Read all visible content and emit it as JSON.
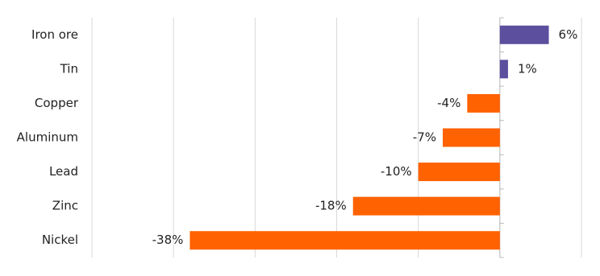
{
  "chart_data": {
    "type": "bar",
    "orientation": "horizontal",
    "categories": [
      "Iron ore",
      "Tin",
      "Copper",
      "Aluminum",
      "Lead",
      "Zinc",
      "Nickel"
    ],
    "values": [
      6,
      1,
      -4,
      -7,
      -10,
      -18,
      -38
    ],
    "value_labels": [
      "6%",
      "1%",
      "-4%",
      "-7%",
      "-10%",
      "-18%",
      "-38%"
    ],
    "colors": [
      "#5b4f9e",
      "#5b4f9e",
      "#ff6200",
      "#ff6200",
      "#ff6200",
      "#ff6200",
      "#ff6200"
    ],
    "xlim": [
      -50,
      10
    ],
    "xticks": [
      -50,
      -40,
      -30,
      -20,
      -10,
      0,
      10
    ],
    "grid": true
  }
}
